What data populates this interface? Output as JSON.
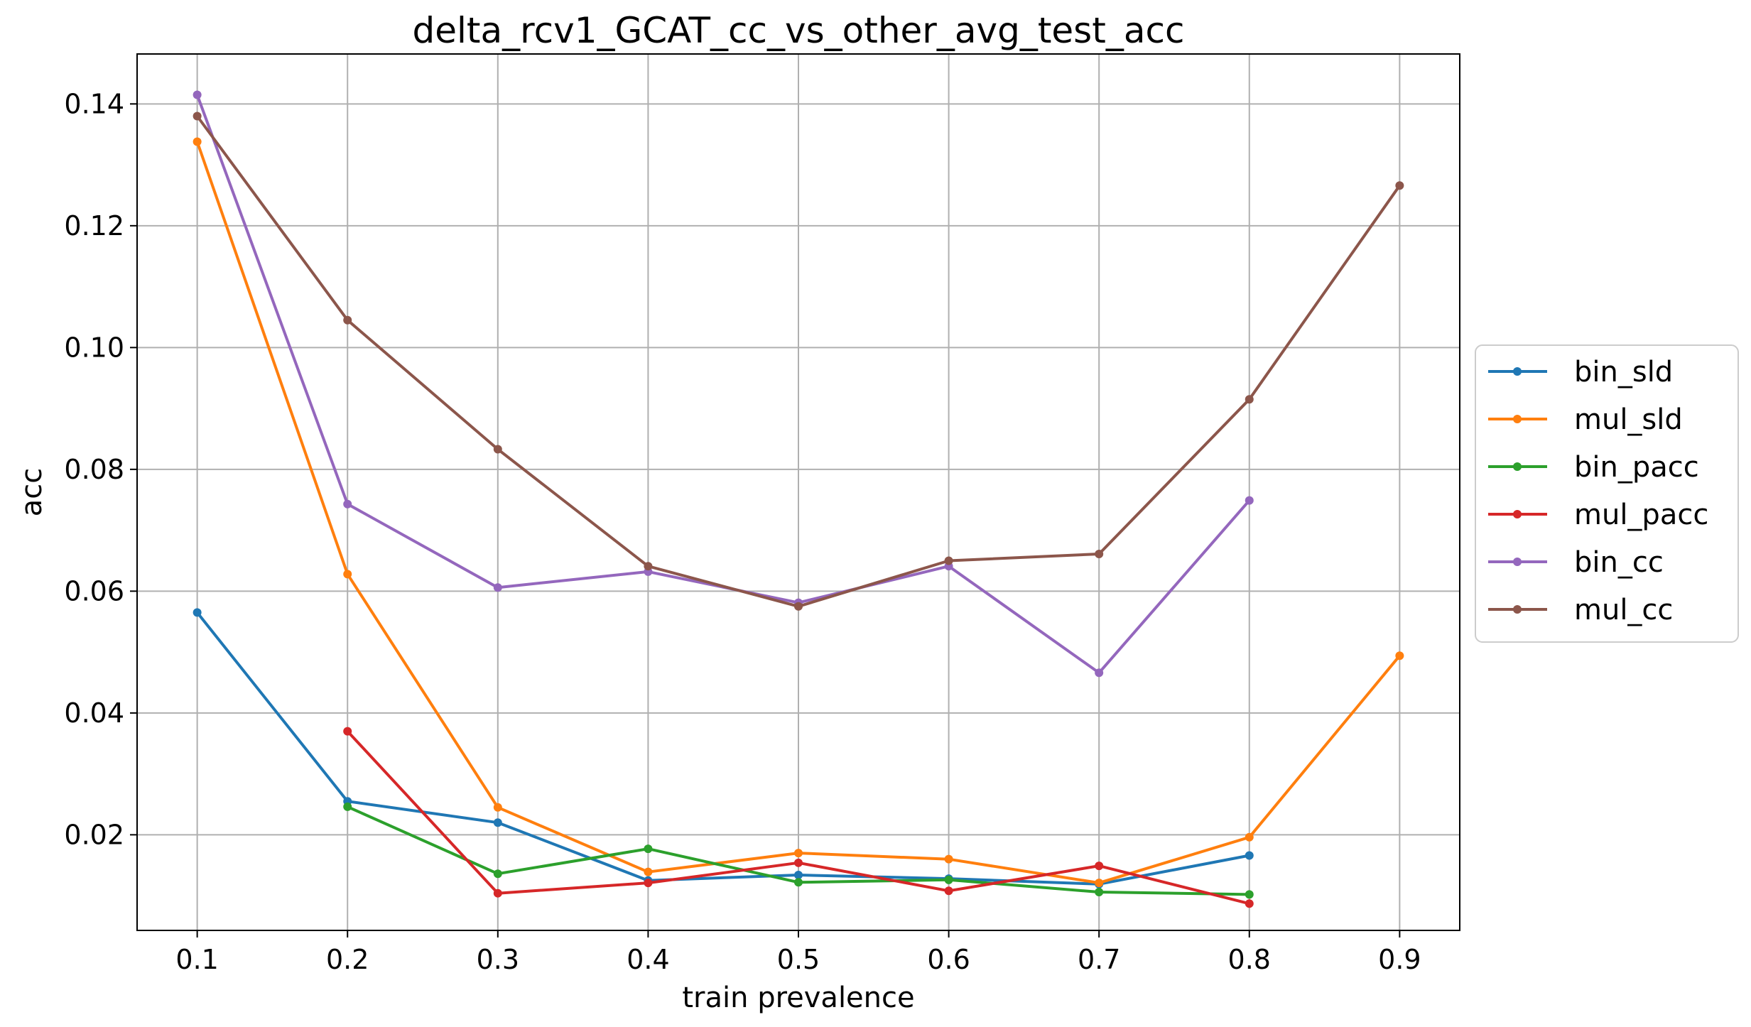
{
  "chart_data": {
    "type": "line",
    "title": "delta_rcv1_GCAT_cc_vs_other_avg_test_acc",
    "xlabel": "train prevalence",
    "ylabel": "acc",
    "x_ticks": [
      "0.1",
      "0.2",
      "0.3",
      "0.4",
      "0.5",
      "0.6",
      "0.7",
      "0.8",
      "0.9"
    ],
    "y_ticks": [
      "0.02",
      "0.04",
      "0.06",
      "0.08",
      "0.10",
      "0.12",
      "0.14"
    ],
    "xlim": [
      0.06,
      0.94
    ],
    "ylim": [
      0.0043,
      0.1482
    ],
    "grid": true,
    "legend_position": "outside-right",
    "series": [
      {
        "name": "bin_sld",
        "color": "#1f77b4",
        "x": [
          0.1,
          0.2,
          0.3,
          0.4,
          0.5,
          0.6,
          0.7,
          0.8
        ],
        "y": [
          0.0565,
          0.0255,
          0.022,
          0.0125,
          0.0134,
          0.0128,
          0.0119,
          0.0166
        ]
      },
      {
        "name": "mul_sld",
        "color": "#ff7f0e",
        "x": [
          0.1,
          0.2,
          0.3,
          0.4,
          0.5,
          0.6,
          0.7,
          0.8,
          0.9
        ],
        "y": [
          0.1338,
          0.0628,
          0.0245,
          0.0139,
          0.017,
          0.016,
          0.0121,
          0.0196,
          0.0494
        ]
      },
      {
        "name": "bin_pacc",
        "color": "#2ca02c",
        "x": [
          0.2,
          0.3,
          0.4,
          0.5,
          0.6,
          0.7,
          0.8
        ],
        "y": [
          0.0246,
          0.0136,
          0.0177,
          0.0122,
          0.0126,
          0.0106,
          0.0102
        ]
      },
      {
        "name": "mul_pacc",
        "color": "#d62728",
        "x": [
          0.2,
          0.3,
          0.4,
          0.5,
          0.6,
          0.7,
          0.8
        ],
        "y": [
          0.037,
          0.0104,
          0.0121,
          0.0154,
          0.0108,
          0.0149,
          0.0087
        ]
      },
      {
        "name": "bin_cc",
        "color": "#9467bd",
        "x": [
          0.1,
          0.2,
          0.3,
          0.4,
          0.5,
          0.6,
          0.7,
          0.8
        ],
        "y": [
          0.1415,
          0.0743,
          0.0606,
          0.0632,
          0.0581,
          0.0641,
          0.0466,
          0.0749
        ]
      },
      {
        "name": "mul_cc",
        "color": "#8c564b",
        "x": [
          0.1,
          0.2,
          0.3,
          0.4,
          0.5,
          0.6,
          0.7,
          0.8,
          0.9
        ],
        "y": [
          0.138,
          0.1045,
          0.0833,
          0.0641,
          0.0575,
          0.065,
          0.0661,
          0.0915,
          0.1266
        ]
      }
    ]
  }
}
